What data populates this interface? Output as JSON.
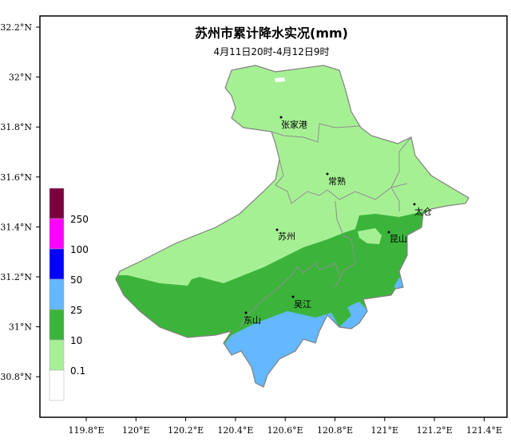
{
  "title": "苏州市累计降水实况(mm)",
  "subtitle": "4月11日20时-4月12日9时",
  "y_ticks": [
    "32.2°N",
    "32°N",
    "31.8°N",
    "31.6°N",
    "31.4°N",
    "31.2°N",
    "31°N",
    "30.8°N"
  ],
  "x_ticks": [
    "119.8°E",
    "120°E",
    "120.2°E",
    "120.4°E",
    "120.6°E",
    "120.8°E",
    "121°E",
    "121.2°E",
    "121.4°E"
  ],
  "legend": {
    "labels": [
      "250",
      "100",
      "50",
      "25",
      "10",
      "0.1"
    ],
    "colors": [
      "#7a003c",
      "#ff00ff",
      "#0000ff",
      "#63b8ff",
      "#3cb43c",
      "#a6f094",
      "#ffffff"
    ]
  },
  "cities": [
    "张家港",
    "常熟",
    "太仓",
    "苏州",
    "昆山",
    "吴江",
    "东山"
  ],
  "colors": {
    "light_green": "#a6f094",
    "green": "#3cb43c",
    "blue": "#63b8ff",
    "outline": "#808080"
  }
}
